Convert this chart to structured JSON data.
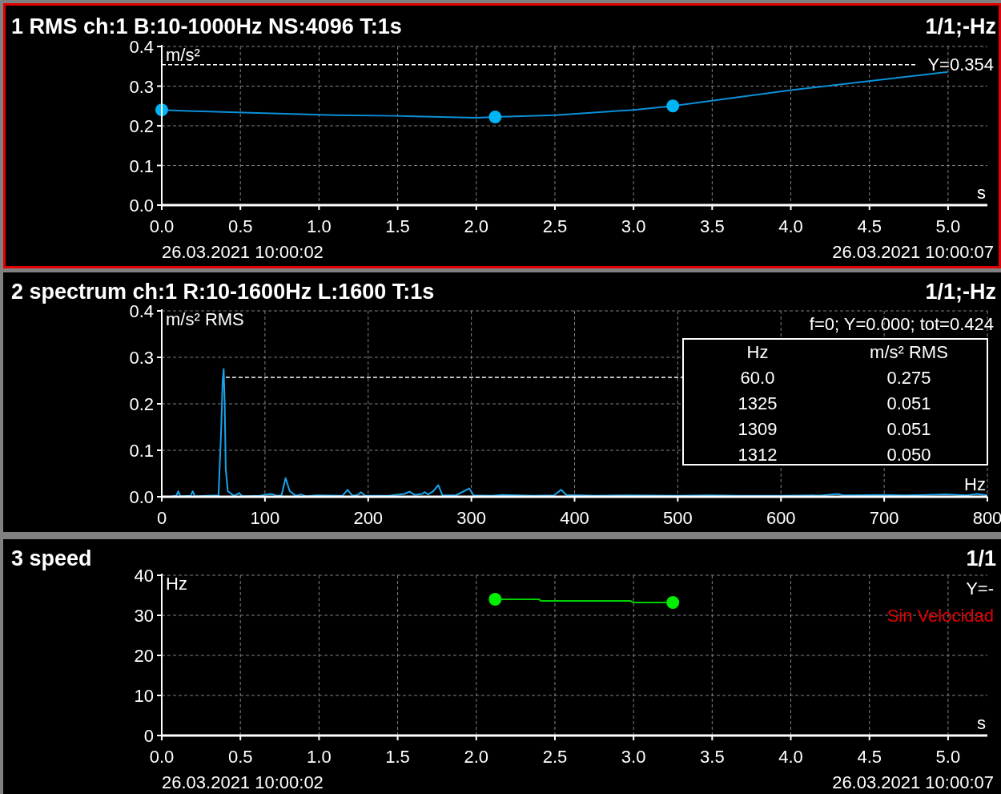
{
  "chart_data": [
    {
      "type": "line",
      "title": "1 RMS ch:1 B:10-1000Hz NS:4096 T:1s",
      "subtitle": "1/1;-Hz",
      "ylabel": "m/s²",
      "xlabel": "s",
      "series": [
        {
          "color": "#0a90d8",
          "marker": "none",
          "x": [
            0,
            0.2,
            0.65,
            1.1,
            1.5,
            2.0,
            2.12,
            2.5,
            3.0,
            3.25,
            4.0,
            5.0
          ],
          "values": [
            0.24,
            0.237,
            0.232,
            0.227,
            0.225,
            0.22,
            0.222,
            0.227,
            0.24,
            0.25,
            0.29,
            0.336
          ]
        },
        {
          "type": "scatter",
          "color": "#00b4f5",
          "marker": "circle",
          "x": [
            0,
            2.12,
            3.25
          ],
          "values": [
            0.24,
            0.222,
            0.25
          ]
        }
      ],
      "xlim": [
        0,
        5.25
      ],
      "xticks": [
        {
          "value": 0,
          "label": "0.0"
        },
        0.5,
        {
          "value": 1,
          "label": "1.0"
        },
        1.5,
        {
          "value": 2,
          "label": "2.0"
        },
        2.5,
        {
          "value": 3,
          "label": "3.0"
        },
        3.5,
        {
          "value": 4,
          "label": "4.0"
        },
        4.5,
        {
          "value": 5,
          "label": "5.0"
        }
      ],
      "ylim": [
        0,
        0.4
      ],
      "yticks": [
        {
          "value": 0,
          "label": "0.0"
        },
        0.1,
        0.2,
        0.3,
        0.4
      ],
      "grid": true,
      "ref_lines": [
        {
          "axis": "y",
          "value": 0.354,
          "label": "Y=0.354",
          "color": "#ffffff",
          "line_style": "dashed"
        }
      ],
      "annotations": [
        "26.03.2021 10:00:02",
        "26.03.2021 10:00:07"
      ]
    },
    {
      "type": "line",
      "title": "2 spectrum ch:1 R:10-1600Hz L:1600 T:1s",
      "subtitle": "1/1;-Hz",
      "ylabel": "m/s² RMS",
      "xlabel": "Hz",
      "series": [
        {
          "color": "#1aa3ea",
          "x": [
            10,
            14,
            16,
            18,
            28,
            30,
            32,
            45,
            55,
            57.5,
            59,
            60,
            61,
            62,
            64,
            70,
            75,
            78,
            95,
            105,
            108,
            112,
            116,
            120,
            124,
            130,
            135,
            140,
            150,
            175,
            180,
            185,
            190,
            193,
            197,
            220,
            235,
            240,
            245,
            252,
            255,
            258,
            263,
            268,
            272,
            285,
            298,
            302,
            320,
            330,
            360,
            380,
            387,
            392,
            420,
            450,
            500,
            530,
            560,
            600,
            640,
            655,
            660,
            700,
            720,
            740,
            760,
            780,
            790,
            800
          ],
          "values": [
            0.001,
            0.002,
            0.012,
            0.001,
            0.002,
            0.012,
            0.001,
            0.002,
            0.003,
            0.14,
            0.25,
            0.275,
            0.2,
            0.06,
            0.012,
            0.002,
            0.008,
            0.001,
            0.002,
            0.006,
            0.005,
            0.002,
            0.003,
            0.04,
            0.012,
            0.002,
            0.005,
            0.001,
            0.003,
            0.002,
            0.015,
            0.002,
            0.004,
            0.01,
            0.002,
            0.002,
            0.006,
            0.011,
            0.004,
            0.006,
            0.01,
            0.005,
            0.012,
            0.025,
            0.003,
            0.003,
            0.018,
            0.003,
            0.002,
            0.004,
            0.002,
            0.003,
            0.015,
            0.004,
            0.002,
            0.003,
            0.002,
            0.003,
            0.002,
            0.002,
            0.003,
            0.006,
            0.003,
            0.004,
            0.003,
            0.004,
            0.005,
            0.003,
            0.006,
            0.003
          ]
        }
      ],
      "xlim": [
        0,
        800
      ],
      "xticks": [
        0,
        100,
        200,
        300,
        400,
        500,
        600,
        700,
        800
      ],
      "ylim": [
        0,
        0.4
      ],
      "yticks": [
        {
          "value": 0,
          "label": "0.0"
        },
        0.1,
        0.2,
        0.3,
        0.4
      ],
      "grid": true,
      "ref_lines": [
        {
          "axis": "y",
          "value": 0.257,
          "label": null,
          "color": "#ffffff",
          "line_style": "dashed"
        }
      ],
      "annotations": [
        "f=0; Y=0.000; tot=0.424",
        "Hz",
        "m/s² RMS",
        "60.0",
        "0.275",
        "1325",
        "0.051",
        "1309",
        "0.051",
        "1312",
        "0.050"
      ]
    },
    {
      "type": "line",
      "title": "3 speed",
      "subtitle": "1/1",
      "ylabel": "Hz",
      "xlabel": "s",
      "series": [
        {
          "color": "#00d000",
          "marker": "none",
          "x": [
            2.12,
            2.4,
            2.41,
            2.98,
            3.0,
            3.25
          ],
          "values": [
            34,
            34,
            33.6,
            33.6,
            33.2,
            33.2
          ]
        },
        {
          "type": "scatter",
          "color": "#00ee00",
          "marker": "circle",
          "x": [
            2.12,
            3.25
          ],
          "values": [
            34,
            33.2
          ]
        }
      ],
      "xlim": [
        0,
        5.25
      ],
      "xticks": [
        {
          "value": 0,
          "label": "0.0"
        },
        0.5,
        {
          "value": 1,
          "label": "1.0"
        },
        1.5,
        {
          "value": 2,
          "label": "2.0"
        },
        2.5,
        {
          "value": 3,
          "label": "3.0"
        },
        3.5,
        {
          "value": 4,
          "label": "4.0"
        },
        4.5,
        {
          "value": 5,
          "label": "5.0"
        }
      ],
      "ylim": [
        0,
        40
      ],
      "yticks": [
        0,
        10,
        20,
        30,
        40
      ],
      "grid": true,
      "annotations": [
        "Y=-",
        "Sin Velocidad",
        "26.03.2021 10:00:02",
        "26.03.2021 10:00:07"
      ]
    }
  ]
}
